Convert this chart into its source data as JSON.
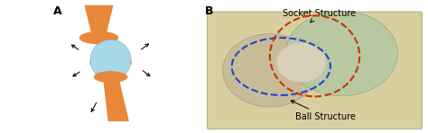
{
  "bg_color": "#ffffff",
  "panel_A_label": "A",
  "panel_B_label": "B",
  "label_fontsize": 9,
  "label_fontweight": "bold",
  "socket_text": "Socket Structure",
  "ball_text": "Ball Structure",
  "annotation_fontsize": 7,
  "orange_color": "#E8883A",
  "light_blue": "#A8D8EA",
  "arrow_color": "#111111",
  "socket_orange": "#CC3300",
  "socket_blue": "#2244CC",
  "bone_bg": "#d8cfa0",
  "bone_fg": "#c4ba90",
  "scapula_color": "#b8c8a0"
}
